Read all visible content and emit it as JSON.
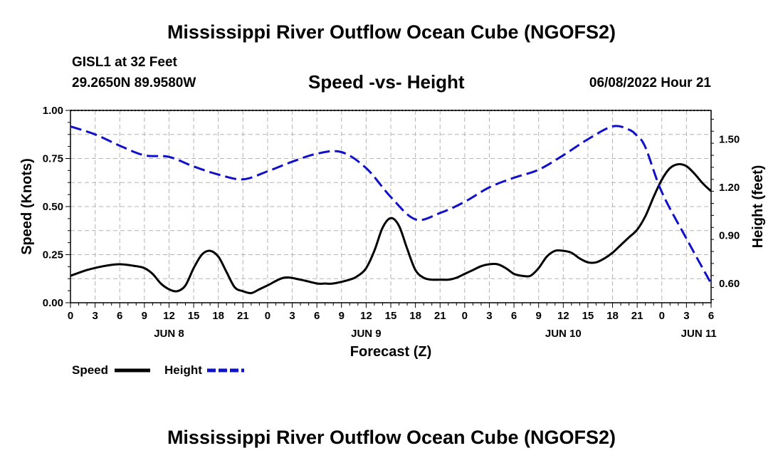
{
  "title": "Mississippi River Outflow Ocean Cube (NGOFS2)",
  "repeat_title": "Mississippi River Outflow Ocean Cube (NGOFS2)",
  "station": "GISL1 at 32 Feet",
  "coords": "29.2650N  89.9580W",
  "subtitle": "Speed -vs- Height",
  "datetime": "06/08/2022 Hour 21",
  "colors": {
    "speed": "#000000",
    "height": "#1010c8",
    "grid": "#b4b4b4"
  },
  "chart_data": {
    "type": "line",
    "title": "Speed -vs- Height",
    "xlabel": "Forecast (Z)",
    "ylabel": "Speed (Knots)",
    "y2label": "Height (feet)",
    "x_unit": "hours since 06/08/2022 00Z",
    "xlim": [
      0,
      78
    ],
    "ylim": [
      0,
      1.0
    ],
    "y2lim": [
      0.48,
      1.68
    ],
    "grid": true,
    "legend_position": "bottom-left",
    "x_ticks": [
      0,
      3,
      6,
      9,
      12,
      15,
      18,
      21,
      24,
      27,
      30,
      33,
      36,
      39,
      42,
      45,
      48,
      51,
      54,
      57,
      60,
      63,
      66,
      69,
      72,
      75,
      78
    ],
    "x_tick_labels": [
      "0",
      "3",
      "6",
      "9",
      "12",
      "15",
      "18",
      "21",
      "0",
      "3",
      "6",
      "9",
      "12",
      "15",
      "18",
      "21",
      "0",
      "3",
      "6",
      "9",
      "12",
      "15",
      "18",
      "21",
      "0",
      "3",
      "6"
    ],
    "day_labels": [
      {
        "label": "JUN 8",
        "x": 12
      },
      {
        "label": "JUN 9",
        "x": 36
      },
      {
        "label": "JUN 10",
        "x": 60
      },
      {
        "label": "JUN 11",
        "x": 76.5
      }
    ],
    "y_ticks": [
      0,
      0.25,
      0.5,
      0.75,
      1.0
    ],
    "y_tick_labels": [
      "0.00",
      "0.25",
      "0.50",
      "0.75",
      "1.00"
    ],
    "y2_ticks": [
      0.6,
      0.9,
      1.2,
      1.5
    ],
    "y2_tick_labels": [
      "0.60",
      "0.90",
      "1.20",
      "1.50"
    ],
    "series": [
      {
        "name": "Speed",
        "axis": "left",
        "style": "solid",
        "x": [
          0,
          2,
          4,
          6,
          8,
          9,
          10,
          11,
          12,
          13,
          14,
          15,
          16,
          17,
          18,
          19,
          20,
          21,
          22,
          23,
          24,
          26,
          28,
          30,
          31,
          32,
          34,
          35,
          36,
          37,
          38,
          39,
          40,
          41,
          42,
          43,
          44,
          45,
          46,
          47,
          48,
          49,
          50,
          51,
          52,
          53,
          54,
          55,
          56,
          57,
          58,
          59,
          60,
          61,
          62,
          63,
          64,
          65,
          66,
          67,
          68,
          69,
          70,
          71,
          72,
          73,
          74,
          75,
          76,
          77,
          78
        ],
        "values": [
          0.14,
          0.17,
          0.19,
          0.2,
          0.19,
          0.18,
          0.15,
          0.1,
          0.07,
          0.06,
          0.09,
          0.18,
          0.25,
          0.27,
          0.24,
          0.16,
          0.08,
          0.06,
          0.05,
          0.07,
          0.09,
          0.13,
          0.12,
          0.1,
          0.1,
          0.1,
          0.12,
          0.14,
          0.18,
          0.27,
          0.39,
          0.44,
          0.4,
          0.28,
          0.17,
          0.13,
          0.12,
          0.12,
          0.12,
          0.13,
          0.15,
          0.17,
          0.19,
          0.2,
          0.2,
          0.18,
          0.15,
          0.14,
          0.14,
          0.18,
          0.24,
          0.27,
          0.27,
          0.26,
          0.23,
          0.21,
          0.21,
          0.23,
          0.26,
          0.3,
          0.34,
          0.38,
          0.45,
          0.55,
          0.64,
          0.7,
          0.72,
          0.71,
          0.67,
          0.62,
          0.58
        ]
      },
      {
        "name": "Height",
        "axis": "right",
        "style": "dashed",
        "x": [
          0,
          3,
          6,
          9,
          12,
          15,
          18,
          21,
          24,
          27,
          30,
          33,
          36,
          39,
          42,
          45,
          48,
          51,
          54,
          57,
          60,
          63,
          66,
          68,
          69,
          70,
          72,
          75,
          78
        ],
        "values": [
          1.58,
          1.53,
          1.46,
          1.4,
          1.39,
          1.33,
          1.28,
          1.25,
          1.3,
          1.36,
          1.41,
          1.42,
          1.32,
          1.14,
          1.0,
          1.04,
          1.11,
          1.2,
          1.26,
          1.31,
          1.4,
          1.5,
          1.58,
          1.56,
          1.52,
          1.45,
          1.17,
          0.88,
          0.6
        ]
      }
    ]
  },
  "legend": {
    "speed_label": "Speed",
    "height_label": "Height"
  }
}
